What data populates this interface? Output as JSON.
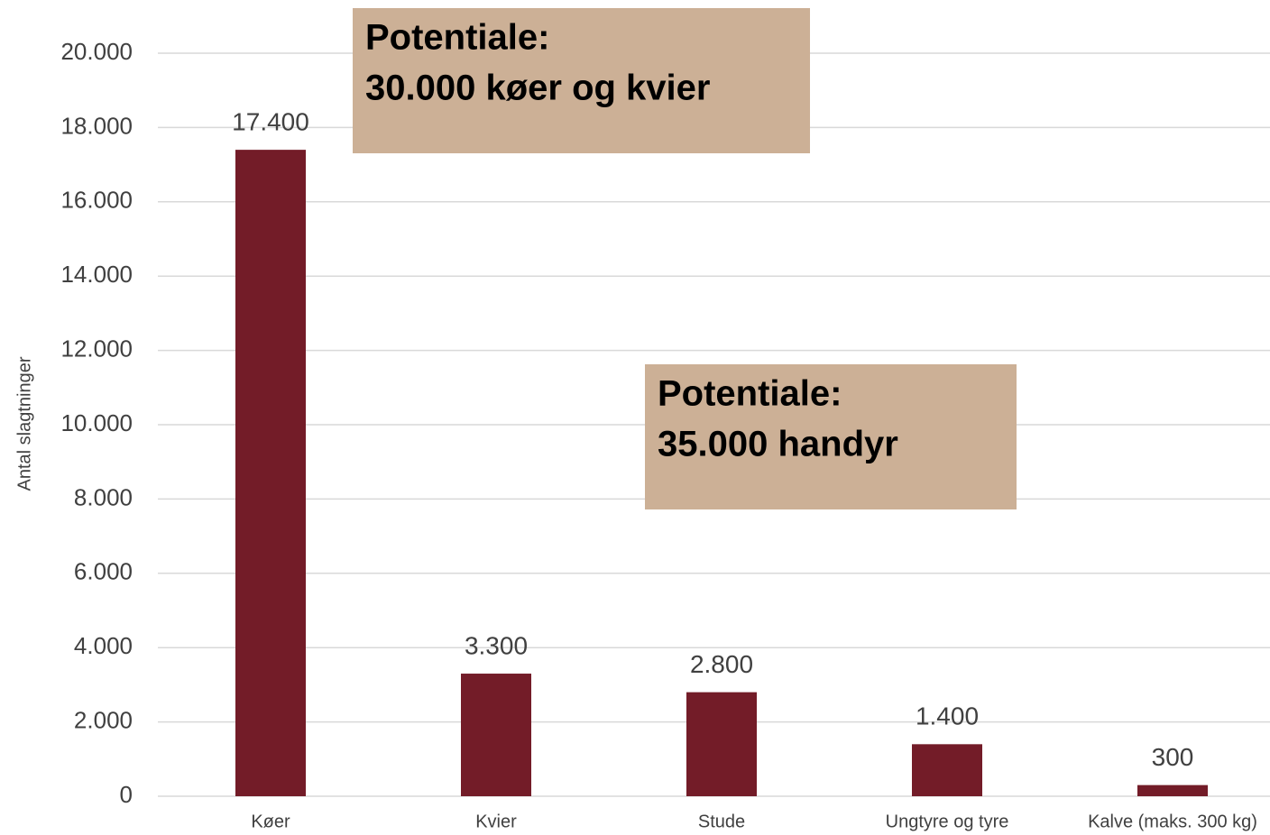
{
  "chart_data": {
    "type": "bar",
    "y_label": "Antal slagtninger",
    "categories": [
      "Køer",
      "Kvier",
      "Stude",
      "Ungtyre og tyre",
      "Kalve (maks. 300 kg)"
    ],
    "values": [
      17400,
      3300,
      2800,
      1400,
      300
    ],
    "value_labels": [
      "17.400",
      "3.300",
      "2.800",
      "1.400",
      "300"
    ],
    "color": "#731c28",
    "ylim": [
      0,
      20000
    ],
    "yticks": [
      0,
      {
        "value": 2000,
        "label": "2.000"
      },
      {
        "value": 4000,
        "label": "4.000"
      },
      {
        "value": 6000,
        "label": "6.000"
      },
      {
        "value": 8000,
        "label": "8.000"
      },
      {
        "value": 10000,
        "label": "10.000"
      },
      {
        "value": 12000,
        "label": "12.000"
      },
      {
        "value": 14000,
        "label": "14.000"
      },
      {
        "value": 16000,
        "label": "16.000"
      },
      {
        "value": 18000,
        "label": "18.000"
      },
      {
        "value": 20000,
        "label": "20.000"
      }
    ],
    "grid": true,
    "annotations": [
      {
        "lines": [
          "Potentiale:",
          "30.000 køer og kvier"
        ],
        "color": "#ccb096"
      },
      {
        "lines": [
          "Potentiale:",
          "35.000 handyr"
        ],
        "color": "#ccb096"
      }
    ]
  }
}
